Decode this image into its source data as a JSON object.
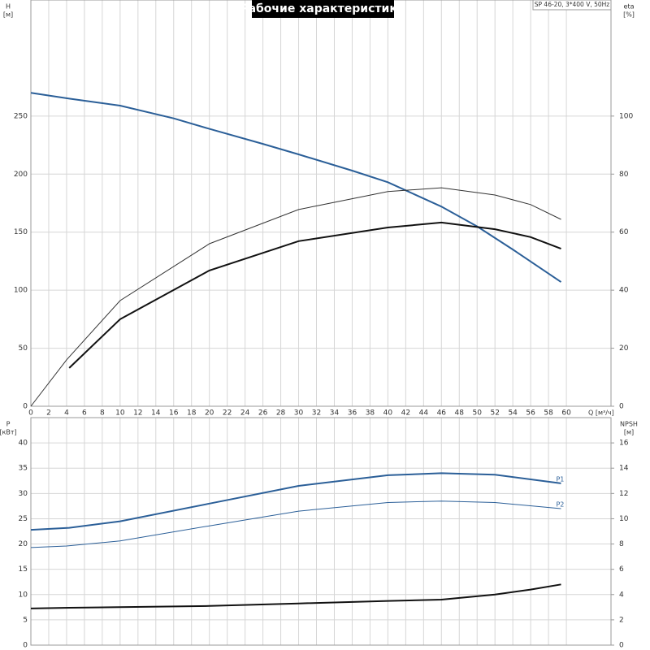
{
  "chart_data": [
    {
      "type": "line",
      "title": "Рабочие характеристики",
      "subtitle": "SP 46-20, 3*400 V, 50Hz",
      "xlabel": "Q [м³/ч]",
      "ylabel": "H",
      "ylabel_unit": "[м]",
      "y2label": "eta",
      "y2label_unit": "[%]",
      "xlim": [
        0,
        65
      ],
      "xticks": [
        0,
        2,
        4,
        6,
        8,
        10,
        12,
        14,
        16,
        18,
        20,
        22,
        24,
        26,
        28,
        30,
        32,
        34,
        36,
        38,
        40,
        42,
        44,
        46,
        48,
        50,
        52,
        54,
        56,
        58,
        60
      ],
      "ylim": [
        0,
        350
      ],
      "yticks": [
        0,
        50,
        100,
        150,
        200,
        250
      ],
      "y2lim": [
        0,
        140
      ],
      "y2ticks": [
        0,
        20,
        40,
        60,
        80,
        100
      ],
      "grid": true,
      "series": [
        {
          "color": "#2b5f98",
          "line_width": 2,
          "axis": "y",
          "x": [
            0,
            4.3,
            10,
            16,
            20,
            26,
            30,
            36,
            40,
            42,
            46,
            50,
            54,
            59.4
          ],
          "values": [
            270,
            265,
            259,
            248,
            239,
            226,
            217,
            203,
            193,
            186,
            172,
            155,
            135,
            107
          ]
        },
        {
          "color": "#333333",
          "line_width": 1,
          "axis": "y2",
          "x": [
            0,
            4,
            10,
            20,
            30,
            40,
            46,
            52,
            56,
            59.4
          ],
          "values": [
            0,
            16,
            36.4,
            56,
            67.8,
            74,
            75.3,
            72.8,
            69.5,
            64.4
          ]
        },
        {
          "color": "#111111",
          "line_width": 2,
          "axis": "y2",
          "x": [
            4.3,
            10,
            20,
            30,
            40,
            46,
            52,
            56,
            59.4
          ],
          "values": [
            13.2,
            30,
            46.8,
            56.9,
            61.6,
            63.3,
            61,
            58.3,
            54.3
          ]
        }
      ]
    },
    {
      "type": "line",
      "ylabel": "P",
      "ylabel_unit": "[кВт]",
      "y2label": "NPSH",
      "y2label_unit": "[м]",
      "xlim": [
        0,
        65
      ],
      "ylim": [
        0,
        45
      ],
      "yticks": [
        0,
        5,
        10,
        15,
        20,
        25,
        30,
        35,
        40
      ],
      "y2lim": [
        0,
        18
      ],
      "y2ticks": [
        0,
        2,
        4,
        6,
        8,
        10,
        12,
        14,
        16
      ],
      "grid": true,
      "series": [
        {
          "name": "P1",
          "color": "#2b5f98",
          "line_width": 2,
          "axis": "y",
          "x": [
            0,
            4.3,
            10,
            20,
            30,
            40,
            46,
            52,
            59.4
          ],
          "values": [
            22.8,
            23.2,
            24.5,
            28,
            31.5,
            33.6,
            34,
            33.7,
            32
          ]
        },
        {
          "name": "P2",
          "color": "#2b5f98",
          "line_width": 1,
          "axis": "y",
          "x": [
            0,
            4,
            10,
            20,
            30,
            40,
            46,
            52,
            59.4
          ],
          "values": [
            19.3,
            19.6,
            20.6,
            23.6,
            26.5,
            28.2,
            28.5,
            28.2,
            27
          ]
        },
        {
          "color": "#111111",
          "line_width": 2,
          "axis": "y2",
          "x": [
            0,
            4.3,
            20,
            30,
            40,
            46,
            52,
            56,
            59.4
          ],
          "values": [
            2.9,
            2.96,
            3.1,
            3.3,
            3.5,
            3.6,
            4.0,
            4.4,
            4.8
          ]
        }
      ]
    }
  ]
}
